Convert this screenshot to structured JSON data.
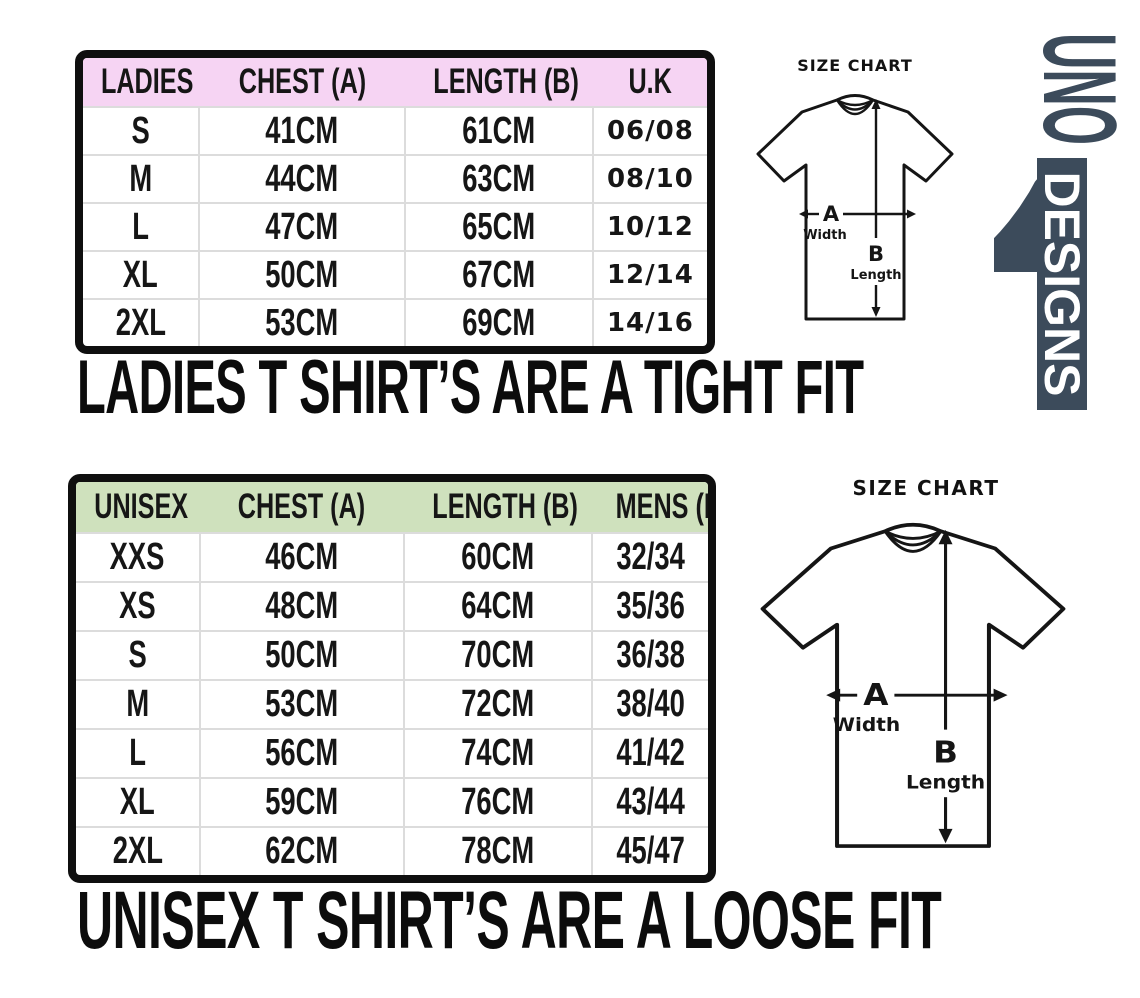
{
  "page": {
    "background": "#ffffff"
  },
  "logo": {
    "word_top": "UNO",
    "word_bottom": "DESIGNS",
    "color": "#3c4b5b"
  },
  "captions": {
    "ladies": "LADIES T SHIRT’S ARE A TIGHT FIT",
    "unisex": "UNISEX T SHIRT’S ARE A LOOSE FIT"
  },
  "size_diagrams": [
    {
      "title": "SIZE CHART",
      "width_letter": "A",
      "width_word": "Width",
      "length_letter": "B",
      "length_word": "Length"
    },
    {
      "title": "SIZE CHART",
      "width_letter": "A",
      "width_word": "Width",
      "length_letter": "B",
      "length_word": "Length"
    }
  ],
  "chart_data": [
    {
      "type": "table",
      "title": "Ladies t-shirt size chart (tight fit)",
      "fit_note": "LADIES T SHIRT’S ARE A TIGHT FIT",
      "header_bg": "#f6d4f3",
      "columns": [
        "LADIES",
        "CHEST (A)",
        "LENGTH (B)",
        "U.K"
      ],
      "rows": [
        [
          "S",
          "41CM",
          "61CM",
          "06/08"
        ],
        [
          "M",
          "44CM",
          "63CM",
          "08/10"
        ],
        [
          "L",
          "47CM",
          "65CM",
          "10/12"
        ],
        [
          "XL",
          "50CM",
          "67CM",
          "12/14"
        ],
        [
          "2XL",
          "53CM",
          "69CM",
          "14/16"
        ]
      ]
    },
    {
      "type": "table",
      "title": "Unisex t-shirt size chart (loose fit)",
      "fit_note": "UNISEX T SHIRT’S ARE A LOOSE FIT",
      "header_bg": "#cfe1bd",
      "columns": [
        "UNISEX",
        "CHEST (A)",
        "LENGTH (B)",
        "MENS (IN)"
      ],
      "rows": [
        [
          "XXS",
          "46CM",
          "60CM",
          "32/34"
        ],
        [
          "XS",
          "48CM",
          "64CM",
          "35/36"
        ],
        [
          "S",
          "50CM",
          "70CM",
          "36/38"
        ],
        [
          "M",
          "53CM",
          "72CM",
          "38/40"
        ],
        [
          "L",
          "56CM",
          "74CM",
          "41/42"
        ],
        [
          "XL",
          "59CM",
          "76CM",
          "43/44"
        ],
        [
          "2XL",
          "62CM",
          "78CM",
          "45/47"
        ]
      ]
    }
  ]
}
